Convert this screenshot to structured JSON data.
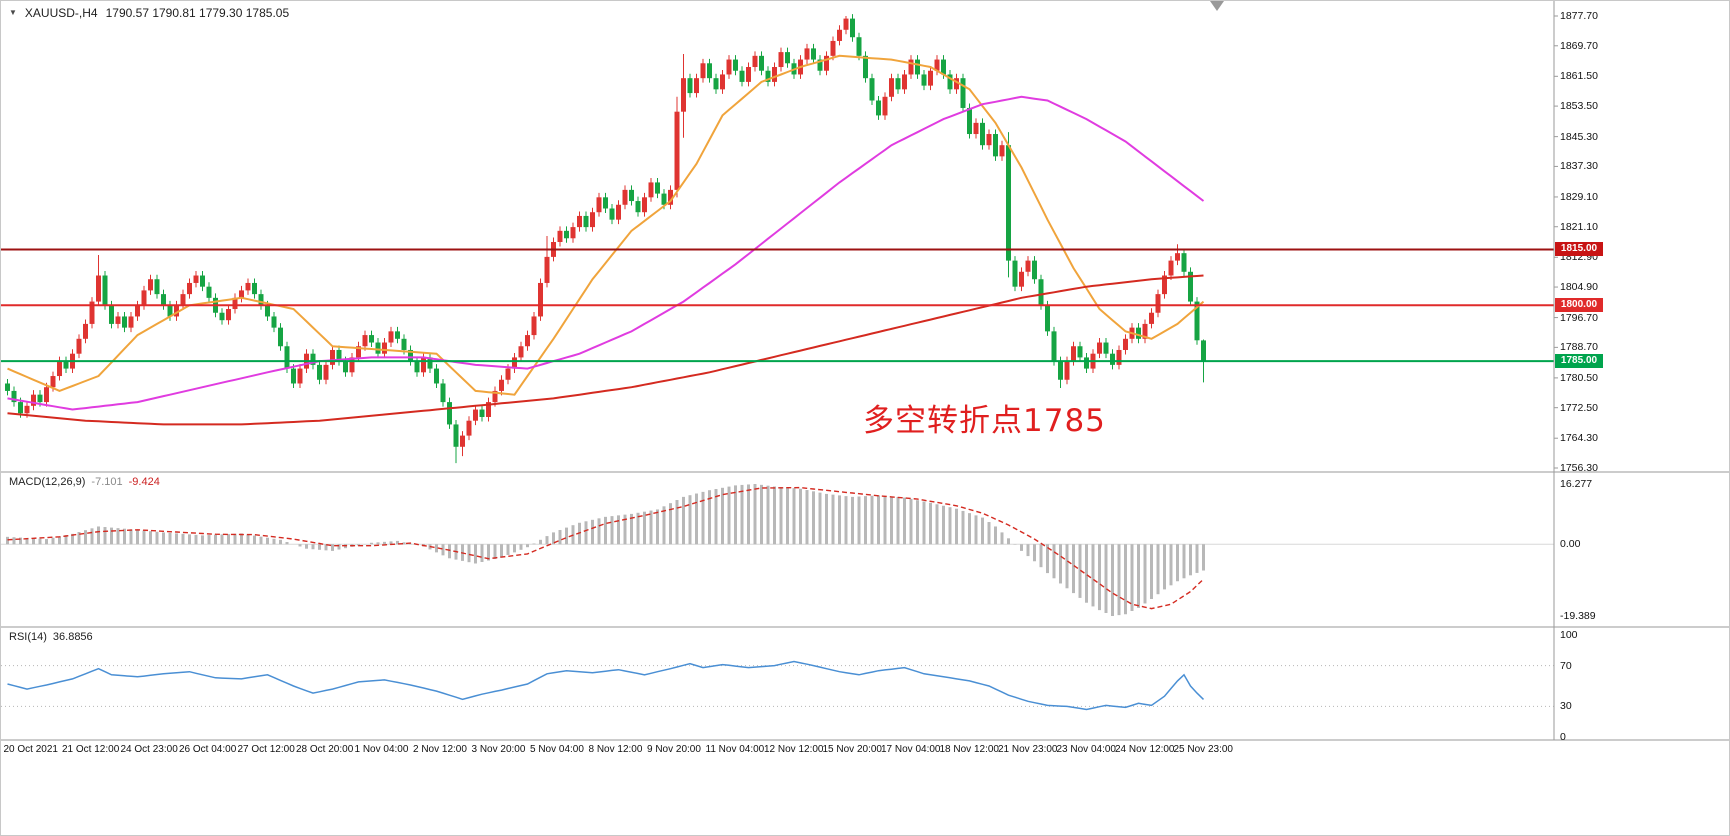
{
  "header": {
    "symbol_title": "XAUUSD-,H4",
    "ohlc_values": "1790.57 1790.81 1779.30 1785.05"
  },
  "annotation": {
    "text": "多空转折点1785",
    "color": "#e01f1f"
  },
  "chart_data": {
    "type": "candlestick",
    "symbol": "XAUUSD-",
    "timeframe": "H4",
    "current_candle": {
      "open": 1790.57,
      "high": 1790.81,
      "low": 1779.3,
      "close": 1785.05
    },
    "first_open": 1779.0,
    "default_wick": 1.2,
    "closes": [
      1777,
      1774,
      1771,
      1773,
      1776,
      1774,
      1778,
      1781,
      1785,
      1783,
      1787,
      1791,
      1795,
      1801,
      1808,
      1800,
      1795,
      1797,
      1794,
      1797,
      1800,
      1804,
      1807,
      1803,
      1800,
      1797,
      1800,
      1803,
      1806,
      1808,
      1805,
      1802,
      1798,
      1796,
      1799,
      1802,
      1804,
      1806,
      1803,
      1800,
      1797,
      1794,
      1789,
      1783,
      1779,
      1783,
      1787,
      1784,
      1780,
      1784,
      1788,
      1785,
      1782,
      1786,
      1789,
      1792,
      1790,
      1787,
      1790,
      1793,
      1791,
      1788,
      1785,
      1782,
      1786,
      1783,
      1779,
      1774,
      1768,
      1762,
      1765,
      1769,
      1772,
      1770,
      1774,
      1777,
      1780,
      1783,
      1786,
      1789,
      1792,
      1797,
      1806,
      1813,
      1817,
      1820,
      1818,
      1821,
      1824,
      1821,
      1825,
      1829,
      1826,
      1823,
      1827,
      1831,
      1828,
      1825,
      1829,
      1833,
      1830,
      1827,
      1831,
      1852,
      1861,
      1857,
      1861,
      1865,
      1861,
      1858,
      1862,
      1866,
      1863,
      1860,
      1864,
      1867,
      1863,
      1860,
      1864,
      1868,
      1865,
      1862,
      1866,
      1869,
      1866,
      1863,
      1867,
      1871,
      1874,
      1877,
      1872,
      1867,
      1861,
      1855,
      1851,
      1856,
      1861,
      1858,
      1862,
      1866,
      1862,
      1859,
      1863,
      1866,
      1862,
      1858,
      1861,
      1853,
      1846,
      1849,
      1843,
      1846,
      1840,
      1843,
      1812,
      1805,
      1809,
      1812,
      1807,
      1800,
      1793,
      1785,
      1780,
      1785,
      1789,
      1786,
      1783,
      1787,
      1790,
      1787,
      1784,
      1788,
      1791,
      1794,
      1791,
      1795,
      1798,
      1803,
      1808,
      1812,
      1814,
      1809,
      1801,
      1790.6,
      1785.05
    ],
    "wick_overrides": {
      "14": {
        "h": 1813.5
      },
      "69": {
        "l": 1757.6
      },
      "70": {
        "l": 1759.5
      },
      "83": {
        "h": 1818.6
      },
      "103": {
        "h": 1856.0,
        "l": 1829.0
      },
      "104": {
        "h": 1867.5,
        "l": 1845.0
      },
      "129": {
        "h": 1877.7
      },
      "154": {
        "h": 1846.5,
        "l": 1807.5
      },
      "162": {
        "l": 1777.8
      },
      "180": {
        "h": 1816.4
      },
      "184": {
        "o": 1790.57,
        "h": 1790.81,
        "l": 1779.3
      }
    },
    "colors": {
      "bull": "#df3431",
      "bear": "#16a443",
      "ma_fast": "#f0a43c",
      "ma_mid": "#e03ce0",
      "ma_slow": "#d42a20",
      "macd_hist": "#b8b8b8",
      "macd_signal": "#d42a20",
      "rsi": "#4a8fd4"
    },
    "y_axis": {
      "min": 1756.3,
      "max": 1877.7,
      "labels": [
        "1877.70",
        "1869.70",
        "1861.50",
        "1853.50",
        "1845.30",
        "1837.30",
        "1829.10",
        "1821.10",
        "1812.90",
        "1804.90",
        "1796.70",
        "1788.70",
        "1780.50",
        "1772.50",
        "1764.30",
        "1756.30"
      ]
    },
    "x_axis": {
      "labels": [
        {
          "index": 0,
          "text": "20 Oct 2021"
        },
        {
          "index": 9,
          "text": "21 Oct 12:00"
        },
        {
          "index": 18,
          "text": "24 Oct 23:00"
        },
        {
          "index": 27,
          "text": "26 Oct 04:00"
        },
        {
          "index": 36,
          "text": "27 Oct 12:00"
        },
        {
          "index": 45,
          "text": "28 Oct 20:00"
        },
        {
          "index": 54,
          "text": "1 Nov 04:00"
        },
        {
          "index": 63,
          "text": "2 Nov 12:00"
        },
        {
          "index": 72,
          "text": "3 Nov 20:00"
        },
        {
          "index": 81,
          "text": "5 Nov 04:00"
        },
        {
          "index": 90,
          "text": "8 Nov 12:00"
        },
        {
          "index": 99,
          "text": "9 Nov 20:00"
        },
        {
          "index": 108,
          "text": "11 Nov 04:00"
        },
        {
          "index": 117,
          "text": "12 Nov 12:00"
        },
        {
          "index": 126,
          "text": "15 Nov 20:00"
        },
        {
          "index": 135,
          "text": "17 Nov 04:00"
        },
        {
          "index": 144,
          "text": "18 Nov 12:00"
        },
        {
          "index": 153,
          "text": "21 Nov 23:00"
        },
        {
          "index": 162,
          "text": "23 Nov 04:00"
        },
        {
          "index": 171,
          "text": "24 Nov 12:00"
        },
        {
          "index": 180,
          "text": "25 Nov 23:00"
        }
      ]
    },
    "hlines": [
      {
        "label": "1815.00",
        "price": 1815.0,
        "color": "#9d1212",
        "badge": "#c81414",
        "width": 2
      },
      {
        "label": "1800.00",
        "price": 1800.0,
        "color": "#e02a2a",
        "badge": "#e02a2a",
        "width": 2
      },
      {
        "label": "1785.00",
        "price": 1785.0,
        "color": "#00a44d",
        "badge": "#00a44d",
        "width": 2
      }
    ],
    "moving_averages": [
      {
        "name": "ma-fast",
        "color_key": "ma_fast",
        "points": [
          [
            0,
            1783
          ],
          [
            8,
            1777
          ],
          [
            14,
            1781
          ],
          [
            20,
            1792
          ],
          [
            28,
            1800
          ],
          [
            36,
            1802
          ],
          [
            44,
            1799
          ],
          [
            50,
            1789
          ],
          [
            58,
            1788
          ],
          [
            66,
            1787
          ],
          [
            72,
            1777
          ],
          [
            78,
            1776
          ],
          [
            84,
            1791
          ],
          [
            90,
            1807
          ],
          [
            96,
            1820
          ],
          [
            102,
            1828
          ],
          [
            106,
            1838
          ],
          [
            110,
            1851
          ],
          [
            116,
            1860
          ],
          [
            122,
            1864
          ],
          [
            128,
            1867
          ],
          [
            136,
            1866
          ],
          [
            142,
            1864
          ],
          [
            148,
            1858
          ],
          [
            152,
            1849
          ],
          [
            156,
            1837
          ],
          [
            160,
            1823
          ],
          [
            164,
            1810
          ],
          [
            168,
            1799
          ],
          [
            172,
            1793
          ],
          [
            176,
            1791
          ],
          [
            180,
            1795
          ],
          [
            184,
            1801
          ]
        ]
      },
      {
        "name": "ma-mid",
        "color_key": "ma_mid",
        "points": [
          [
            0,
            1775
          ],
          [
            10,
            1772
          ],
          [
            20,
            1774
          ],
          [
            30,
            1778
          ],
          [
            40,
            1782
          ],
          [
            48,
            1785
          ],
          [
            56,
            1786
          ],
          [
            64,
            1786
          ],
          [
            72,
            1784
          ],
          [
            80,
            1783
          ],
          [
            88,
            1787
          ],
          [
            96,
            1793
          ],
          [
            104,
            1801
          ],
          [
            112,
            1811
          ],
          [
            120,
            1822
          ],
          [
            128,
            1833
          ],
          [
            136,
            1843
          ],
          [
            144,
            1850
          ],
          [
            150,
            1854
          ],
          [
            156,
            1856
          ],
          [
            160,
            1855
          ],
          [
            166,
            1850
          ],
          [
            172,
            1844
          ],
          [
            178,
            1836
          ],
          [
            184,
            1828
          ]
        ]
      },
      {
        "name": "ma-slow",
        "color_key": "ma_slow",
        "points": [
          [
            0,
            1771
          ],
          [
            12,
            1769
          ],
          [
            24,
            1768
          ],
          [
            36,
            1768
          ],
          [
            48,
            1769
          ],
          [
            60,
            1771
          ],
          [
            72,
            1773
          ],
          [
            84,
            1775
          ],
          [
            96,
            1778
          ],
          [
            108,
            1782
          ],
          [
            120,
            1787
          ],
          [
            132,
            1792
          ],
          [
            144,
            1797
          ],
          [
            156,
            1802
          ],
          [
            166,
            1805
          ],
          [
            176,
            1807
          ],
          [
            184,
            1808
          ]
        ]
      }
    ],
    "macd": {
      "label": "MACD(12,26,9)",
      "value_text": "-7.101",
      "signal_text": "-9.424",
      "value": -7.101,
      "signal": -9.424,
      "axis_max": 16.277,
      "axis_min": -19.389,
      "axis_labels": [
        "16.277",
        "0.00",
        "-19.389"
      ],
      "macd_points": [
        [
          0,
          2.0
        ],
        [
          6,
          1.4
        ],
        [
          10,
          2.8
        ],
        [
          14,
          4.8
        ],
        [
          18,
          4.2
        ],
        [
          24,
          3.2
        ],
        [
          30,
          2.4
        ],
        [
          36,
          2.9
        ],
        [
          42,
          1.2
        ],
        [
          46,
          -1.2
        ],
        [
          50,
          -1.8
        ],
        [
          56,
          0.4
        ],
        [
          60,
          0.9
        ],
        [
          64,
          -0.6
        ],
        [
          68,
          -3.8
        ],
        [
          72,
          -5.2
        ],
        [
          76,
          -3.6
        ],
        [
          80,
          -0.8
        ],
        [
          84,
          3.2
        ],
        [
          88,
          5.8
        ],
        [
          92,
          7.4
        ],
        [
          96,
          8.2
        ],
        [
          100,
          9.4
        ],
        [
          104,
          12.8
        ],
        [
          108,
          14.6
        ],
        [
          112,
          15.9
        ],
        [
          115,
          16.277
        ],
        [
          118,
          15.6
        ],
        [
          122,
          15.0
        ],
        [
          126,
          13.6
        ],
        [
          130,
          12.8
        ],
        [
          134,
          13.2
        ],
        [
          138,
          12.6
        ],
        [
          142,
          11.2
        ],
        [
          146,
          9.6
        ],
        [
          150,
          7.2
        ],
        [
          152,
          4.8
        ],
        [
          154,
          1.6
        ],
        [
          156,
          -1.8
        ],
        [
          158,
          -4.6
        ],
        [
          160,
          -7.8
        ],
        [
          162,
          -10.6
        ],
        [
          164,
          -13.2
        ],
        [
          166,
          -15.8
        ],
        [
          168,
          -17.8
        ],
        [
          170,
          -19.389
        ],
        [
          172,
          -18.9
        ],
        [
          174,
          -17.2
        ],
        [
          176,
          -14.8
        ],
        [
          178,
          -12.2
        ],
        [
          180,
          -10.0
        ],
        [
          182,
          -8.4
        ],
        [
          184,
          -7.101
        ]
      ],
      "signal_points": [
        [
          0,
          1.2
        ],
        [
          8,
          2.0
        ],
        [
          14,
          3.4
        ],
        [
          20,
          3.9
        ],
        [
          26,
          3.3
        ],
        [
          32,
          2.7
        ],
        [
          38,
          2.6
        ],
        [
          44,
          1.4
        ],
        [
          50,
          -0.4
        ],
        [
          56,
          -0.4
        ],
        [
          62,
          0.3
        ],
        [
          68,
          -1.6
        ],
        [
          74,
          -3.9
        ],
        [
          80,
          -2.6
        ],
        [
          86,
          1.8
        ],
        [
          92,
          5.6
        ],
        [
          98,
          7.8
        ],
        [
          104,
          10.2
        ],
        [
          110,
          13.4
        ],
        [
          116,
          15.2
        ],
        [
          122,
          15.3
        ],
        [
          128,
          14.2
        ],
        [
          134,
          13.1
        ],
        [
          140,
          12.2
        ],
        [
          146,
          10.4
        ],
        [
          150,
          8.4
        ],
        [
          154,
          5.2
        ],
        [
          158,
          1.4
        ],
        [
          162,
          -3.2
        ],
        [
          166,
          -8.2
        ],
        [
          170,
          -13.2
        ],
        [
          173,
          -16.2
        ],
        [
          176,
          -17.4
        ],
        [
          179,
          -16.2
        ],
        [
          182,
          -12.8
        ],
        [
          184,
          -9.424
        ]
      ]
    },
    "rsi": {
      "label": "RSI(14)",
      "value_text": "36.8856",
      "value": 36.8856,
      "axis_labels": [
        "100",
        "70",
        "30",
        "0"
      ],
      "levels": [
        70,
        30
      ],
      "points": [
        [
          0,
          52
        ],
        [
          3,
          47
        ],
        [
          6,
          51
        ],
        [
          10,
          57
        ],
        [
          14,
          67
        ],
        [
          16,
          61
        ],
        [
          20,
          59
        ],
        [
          24,
          62
        ],
        [
          28,
          64
        ],
        [
          32,
          58
        ],
        [
          36,
          57
        ],
        [
          40,
          61
        ],
        [
          44,
          50
        ],
        [
          47,
          43
        ],
        [
          50,
          47
        ],
        [
          54,
          54
        ],
        [
          58,
          56
        ],
        [
          62,
          51
        ],
        [
          66,
          45
        ],
        [
          70,
          37
        ],
        [
          73,
          42
        ],
        [
          76,
          46
        ],
        [
          80,
          52
        ],
        [
          83,
          62
        ],
        [
          86,
          65
        ],
        [
          90,
          63
        ],
        [
          94,
          66
        ],
        [
          98,
          61
        ],
        [
          102,
          67
        ],
        [
          105,
          72
        ],
        [
          107,
          68
        ],
        [
          110,
          71
        ],
        [
          114,
          68
        ],
        [
          118,
          70
        ],
        [
          121,
          74
        ],
        [
          124,
          70
        ],
        [
          128,
          64
        ],
        [
          131,
          61
        ],
        [
          134,
          65
        ],
        [
          138,
          68
        ],
        [
          141,
          62
        ],
        [
          145,
          58
        ],
        [
          148,
          55
        ],
        [
          151,
          50
        ],
        [
          154,
          41
        ],
        [
          157,
          35
        ],
        [
          160,
          31
        ],
        [
          163,
          30
        ],
        [
          166,
          27
        ],
        [
          169,
          31
        ],
        [
          172,
          29
        ],
        [
          174,
          33
        ],
        [
          176,
          31
        ],
        [
          178,
          40
        ],
        [
          180,
          55
        ],
        [
          181,
          61
        ],
        [
          182,
          50
        ],
        [
          183,
          43
        ],
        [
          184,
          36.8856
        ]
      ]
    }
  }
}
